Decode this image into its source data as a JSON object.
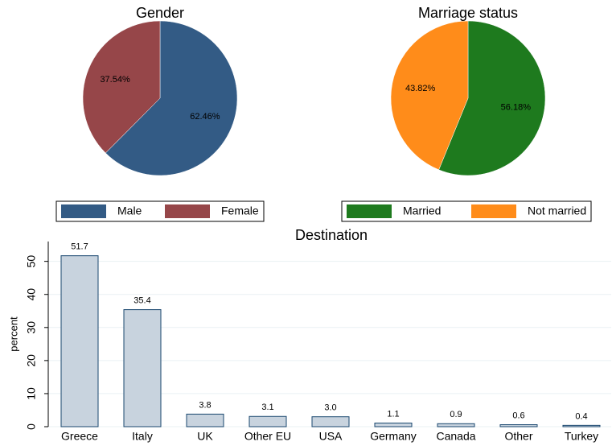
{
  "chart_data": [
    {
      "type": "pie",
      "title": "Gender",
      "categories": [
        "Male",
        "Female"
      ],
      "values": [
        62.46,
        37.54
      ],
      "value_labels": [
        "62.46%",
        "37.54%"
      ],
      "colors": [
        "#335b85",
        "#964649"
      ]
    },
    {
      "type": "pie",
      "title": "Marriage status",
      "categories": [
        "Married",
        "Not married"
      ],
      "values": [
        56.18,
        43.82
      ],
      "value_labels": [
        "56.18%",
        "43.82%"
      ],
      "colors": [
        "#1e7a1e",
        "#ff8c1a"
      ]
    },
    {
      "type": "bar",
      "title": "Destination",
      "y_label": "percent",
      "categories": [
        "Greece",
        "Italy",
        "UK",
        "Other EU",
        "USA",
        "Germany",
        "Canada",
        "Other",
        "Turkey"
      ],
      "values": [
        51.7,
        35.4,
        3.8,
        3.1,
        3.0,
        1.1,
        0.9,
        0.6,
        0.4
      ],
      "value_labels": [
        "51.7",
        "35.4",
        "3.8",
        "3.1",
        "3.0",
        "1.1",
        "0.9",
        "0.6",
        "0.4"
      ],
      "color": "#c8d3de",
      "ylim": [
        0,
        56
      ],
      "yticks": [
        0,
        10,
        20,
        30,
        40,
        50
      ],
      "grid": true
    }
  ]
}
